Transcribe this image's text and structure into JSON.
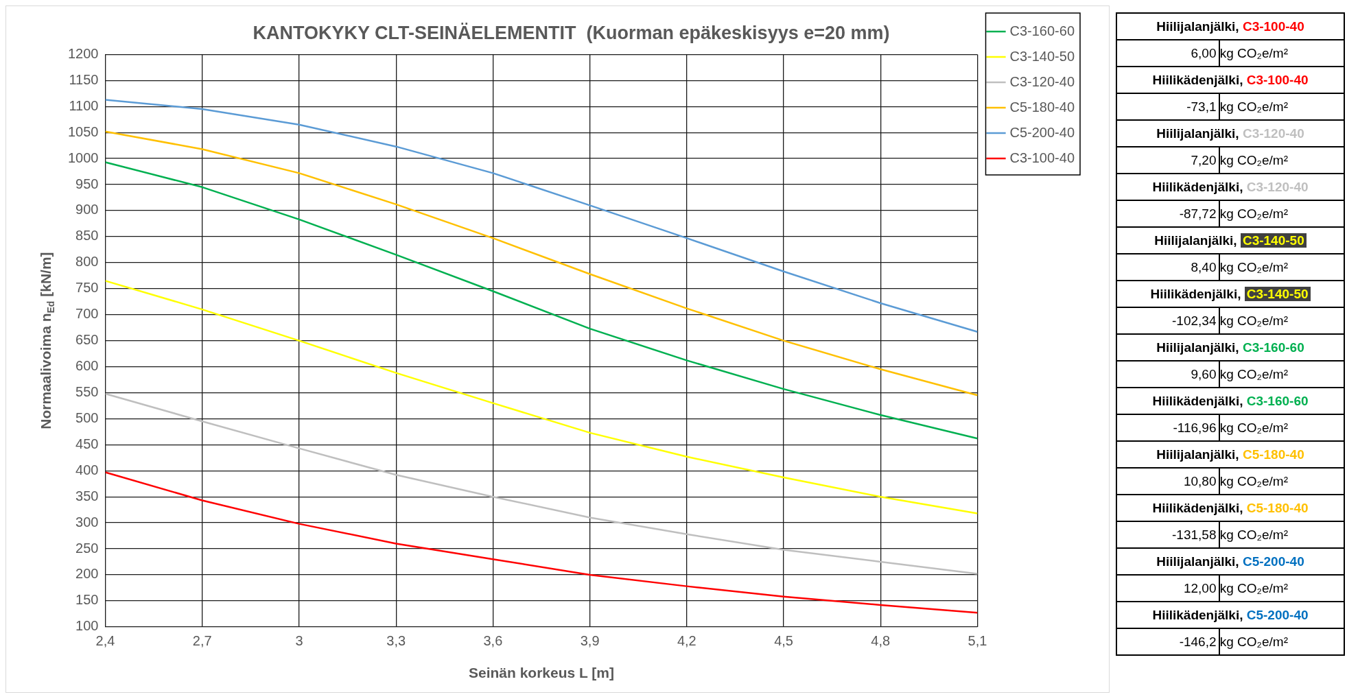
{
  "chart_data": [
    {
      "type": "line",
      "title": "KANTOKYKY CLT-SEINÄELEMENTIT  (Kuorman epäkeskisyys e=20 mm)",
      "xlabel": "Seinän korkeus L [m]",
      "ylabel": "Normaalivoima n$_{Ed}$ [kN/m]",
      "x": [
        2.4,
        2.7,
        3,
        3.3,
        3.6,
        3.9,
        4.2,
        4.5,
        4.8,
        5.1
      ],
      "series": [
        {
          "name": "C3-160-60",
          "color": "#00b050",
          "values": [
            993,
            945,
            883,
            815,
            745,
            673,
            612,
            557,
            507,
            462
          ]
        },
        {
          "name": "C3-140-50",
          "color": "#ffff00",
          "values": [
            765,
            710,
            650,
            588,
            530,
            473,
            427,
            387,
            350,
            318
          ]
        },
        {
          "name": "C3-120-40",
          "color": "#bfbfbf",
          "values": [
            548,
            495,
            443,
            392,
            350,
            310,
            278,
            248,
            225,
            202
          ]
        },
        {
          "name": "C5-180-40",
          "color": "#ffc000",
          "values": [
            1052,
            1018,
            972,
            912,
            847,
            778,
            712,
            650,
            595,
            545
          ]
        },
        {
          "name": "C5-200-40",
          "color": "#5b9bd5",
          "values": [
            1113,
            1095,
            1065,
            1023,
            972,
            910,
            847,
            783,
            722,
            667
          ]
        },
        {
          "name": "C3-100-40",
          "color": "#ff0000",
          "values": [
            397,
            343,
            298,
            260,
            230,
            200,
            178,
            158,
            142,
            127
          ]
        }
      ],
      "xlim": [
        2.4,
        5.1
      ],
      "xticks": [
        {
          "value": 2.4,
          "label": "2,4"
        },
        {
          "value": 2.7,
          "label": "2,7"
        },
        3,
        {
          "value": 3.3,
          "label": "3,3"
        },
        {
          "value": 3.6,
          "label": "3,6"
        },
        {
          "value": 3.9,
          "label": "3,9"
        },
        {
          "value": 4.2,
          "label": "4,2"
        },
        {
          "value": 4.5,
          "label": "4,5"
        },
        {
          "value": 4.8,
          "label": "4,8"
        },
        {
          "value": 5.1,
          "label": "5,1"
        }
      ],
      "ylim": [
        100,
        1200
      ],
      "yticks": [
        100,
        150,
        200,
        250,
        300,
        350,
        400,
        450,
        500,
        550,
        600,
        650,
        700,
        750,
        800,
        850,
        900,
        950,
        1000,
        1050,
        1100,
        1150,
        1200
      ],
      "grid": true,
      "legend": "right"
    },
    {
      "type": "other",
      "categories": [
        "C3-100-40",
        "C3-100-40",
        "C3-120-40",
        "C3-120-40",
        "C3-140-50",
        "C3-140-50",
        "C3-160-60",
        "C3-160-60",
        "C5-180-40",
        "C5-180-40",
        "C5-200-40",
        "C5-200-40"
      ],
      "colors": [
        "#ff0000",
        "#ff0000",
        "#bfbfbf",
        "#bfbfbf",
        "#ffff00",
        "#ffff00",
        "#00b050",
        "#00b050",
        "#ffc000",
        "#ffc000",
        "#0070c0",
        "#0070c0"
      ],
      "annotations": [
        "Hiilijalanjälki,",
        "6,00",
        "kg CO₂e/m²",
        "Hiilikädenjälki,",
        "-73,1",
        "kg CO₂e/m²",
        "Hiilijalanjälki,",
        "7,20",
        "kg CO₂e/m²",
        "Hiilikädenjälki,",
        "-87,72",
        "kg CO₂e/m²",
        "Hiilijalanjälki,",
        "8,40",
        "kg CO₂e/m²",
        "Hiilikädenjälki,",
        "-102,34",
        "kg CO₂e/m²",
        "Hiilijalanjälki,",
        "9,60",
        "kg CO₂e/m²",
        "Hiilikädenjälki,",
        "-116,96",
        "kg CO₂e/m²",
        "Hiilijalanjälki,",
        "10,80",
        "kg CO₂e/m²",
        "Hiilikädenjälki,",
        "-131,58",
        "kg CO₂e/m²",
        "Hiilijalanjälki,",
        "12,00",
        "kg CO₂e/m²",
        "Hiilikädenjälki,",
        "-146,2",
        "kg CO₂e/m²"
      ]
    }
  ]
}
